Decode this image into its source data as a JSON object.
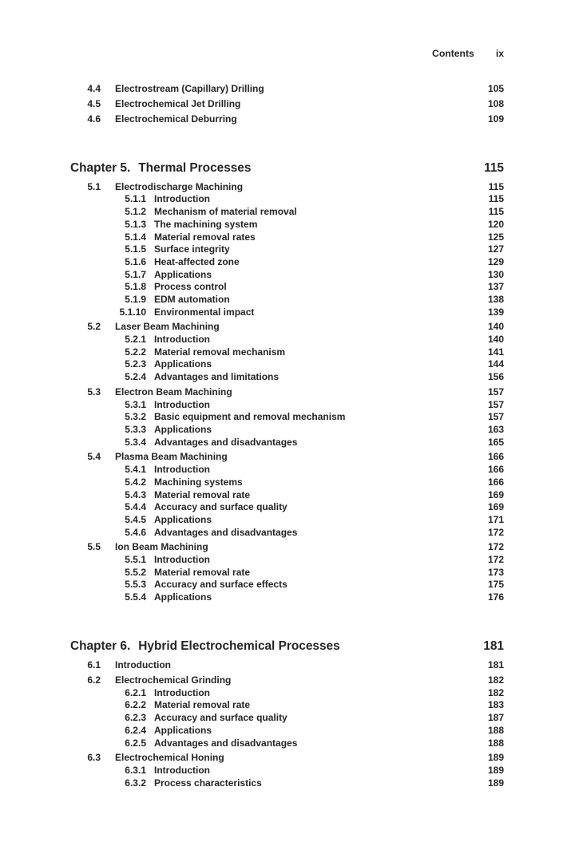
{
  "header": {
    "title": "Contents",
    "page_label": "ix"
  },
  "colors": {
    "text": "#242424",
    "background": "#ffffff"
  },
  "toc": [
    {
      "kind": "l1",
      "num": "4.4",
      "label": "Electrostream (Capillary) Drilling",
      "page": "105"
    },
    {
      "kind": "l1",
      "num": "4.5",
      "label": "Electrochemical Jet Drilling",
      "page": "108"
    },
    {
      "kind": "l1",
      "num": "4.6",
      "label": "Electrochemical Deburring",
      "page": "109"
    },
    {
      "kind": "chapter",
      "num": "Chapter 5.",
      "label": "Thermal Processes",
      "page": "115"
    },
    {
      "kind": "l1",
      "num": "5.1",
      "label": "Electrodischarge Machining",
      "page": "115"
    },
    {
      "kind": "l2",
      "num": "5.1.1",
      "label": "Introduction",
      "page": "115"
    },
    {
      "kind": "l2",
      "num": "5.1.2",
      "label": "Mechanism of material removal",
      "page": "115"
    },
    {
      "kind": "l2",
      "num": "5.1.3",
      "label": "The machining system",
      "page": "120"
    },
    {
      "kind": "l2",
      "num": "5.1.4",
      "label": "Material removal rates",
      "page": "125"
    },
    {
      "kind": "l2",
      "num": "5.1.5",
      "label": "Surface integrity",
      "page": "127"
    },
    {
      "kind": "l2",
      "num": "5.1.6",
      "label": "Heat-affected zone",
      "page": "129"
    },
    {
      "kind": "l2",
      "num": "5.1.7",
      "label": "Applications",
      "page": "130"
    },
    {
      "kind": "l2",
      "num": "5.1.8",
      "label": "Process control",
      "page": "137"
    },
    {
      "kind": "l2",
      "num": "5.1.9",
      "label": "EDM automation",
      "page": "138"
    },
    {
      "kind": "l2",
      "num": "5.1.10",
      "label": "Environmental impact",
      "page": "139"
    },
    {
      "kind": "l1",
      "num": "5.2",
      "label": "Laser Beam Machining",
      "page": "140"
    },
    {
      "kind": "l2",
      "num": "5.2.1",
      "label": "Introduction",
      "page": "140"
    },
    {
      "kind": "l2",
      "num": "5.2.2",
      "label": "Material removal mechanism",
      "page": "141"
    },
    {
      "kind": "l2",
      "num": "5.2.3",
      "label": "Applications",
      "page": "144"
    },
    {
      "kind": "l2",
      "num": "5.2.4",
      "label": "Advantages and limitations",
      "page": "156"
    },
    {
      "kind": "l1",
      "num": "5.3",
      "label": "Electron Beam Machining",
      "page": "157"
    },
    {
      "kind": "l2",
      "num": "5.3.1",
      "label": "Introduction",
      "page": "157"
    },
    {
      "kind": "l2",
      "num": "5.3.2",
      "label": "Basic equipment and removal mechanism",
      "page": "157"
    },
    {
      "kind": "l2",
      "num": "5.3.3",
      "label": "Applications",
      "page": "163"
    },
    {
      "kind": "l2",
      "num": "5.3.4",
      "label": "Advantages and disadvantages",
      "page": "165"
    },
    {
      "kind": "l1",
      "num": "5.4",
      "label": "Plasma Beam Machining",
      "page": "166"
    },
    {
      "kind": "l2",
      "num": "5.4.1",
      "label": "Introduction",
      "page": "166"
    },
    {
      "kind": "l2",
      "num": "5.4.2",
      "label": "Machining systems",
      "page": "166"
    },
    {
      "kind": "l2",
      "num": "5.4.3",
      "label": "Material removal rate",
      "page": "169"
    },
    {
      "kind": "l2",
      "num": "5.4.4",
      "label": "Accuracy and surface quality",
      "page": "169"
    },
    {
      "kind": "l2",
      "num": "5.4.5",
      "label": "Applications",
      "page": "171"
    },
    {
      "kind": "l2",
      "num": "5.4.6",
      "label": "Advantages and disadvantages",
      "page": "172"
    },
    {
      "kind": "l1",
      "num": "5.5",
      "label": "Ion Beam Machining",
      "page": "172"
    },
    {
      "kind": "l2",
      "num": "5.5.1",
      "label": "Introduction",
      "page": "172"
    },
    {
      "kind": "l2",
      "num": "5.5.2",
      "label": "Material removal rate",
      "page": "173"
    },
    {
      "kind": "l2",
      "num": "5.5.3",
      "label": "Accuracy and surface effects",
      "page": "175"
    },
    {
      "kind": "l2",
      "num": "5.5.4",
      "label": "Applications",
      "page": "176"
    },
    {
      "kind": "chapter",
      "num": "Chapter 6.",
      "label": "Hybrid Electrochemical Processes",
      "page": "181"
    },
    {
      "kind": "l1",
      "num": "6.1",
      "label": "Introduction",
      "page": "181"
    },
    {
      "kind": "l1",
      "num": "6.2",
      "label": "Electrochemical Grinding",
      "page": "182"
    },
    {
      "kind": "l2",
      "num": "6.2.1",
      "label": "Introduction",
      "page": "182"
    },
    {
      "kind": "l2",
      "num": "6.2.2",
      "label": "Material removal rate",
      "page": "183"
    },
    {
      "kind": "l2",
      "num": "6.2.3",
      "label": "Accuracy and surface quality",
      "page": "187"
    },
    {
      "kind": "l2",
      "num": "6.2.4",
      "label": "Applications",
      "page": "188"
    },
    {
      "kind": "l2",
      "num": "6.2.5",
      "label": "Advantages and disadvantages",
      "page": "188"
    },
    {
      "kind": "l1",
      "num": "6.3",
      "label": "Electrochemical Honing",
      "page": "189"
    },
    {
      "kind": "l2",
      "num": "6.3.1",
      "label": "Introduction",
      "page": "189"
    },
    {
      "kind": "l2",
      "num": "6.3.2",
      "label": "Process characteristics",
      "page": "189"
    }
  ]
}
